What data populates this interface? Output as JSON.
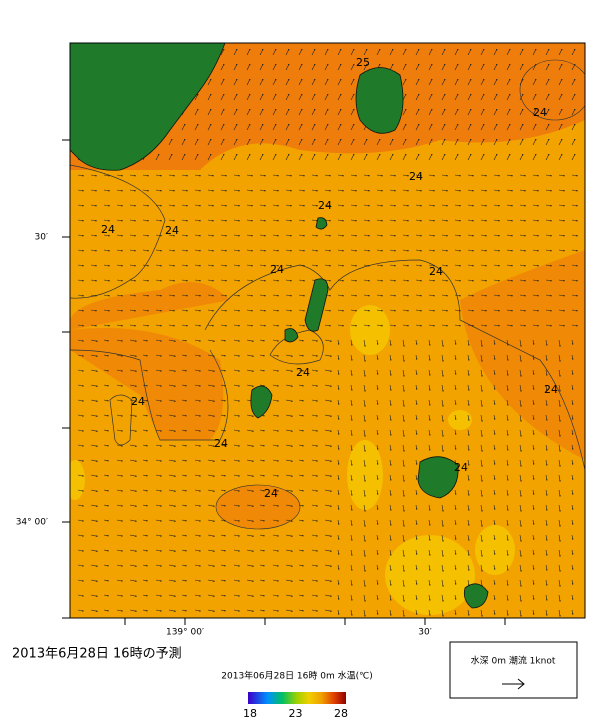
{
  "title": "2013年6月28日 16時の予測",
  "map": {
    "lat_labels": [
      "30′",
      "34° 00′"
    ],
    "lon_labels": [
      "139° 00′",
      "30′"
    ],
    "contour_labels": [
      "25",
      "24",
      "24",
      "24",
      "24",
      "24",
      "24",
      "24",
      "24",
      "24",
      "24",
      "24",
      "24",
      "24"
    ]
  },
  "colorbar": {
    "title": "2013年06月28日 16時 0m 水温(℃)",
    "ticks": [
      18,
      23,
      28
    ]
  },
  "legend": {
    "text": "水深 0m 潮流 1knot"
  }
}
